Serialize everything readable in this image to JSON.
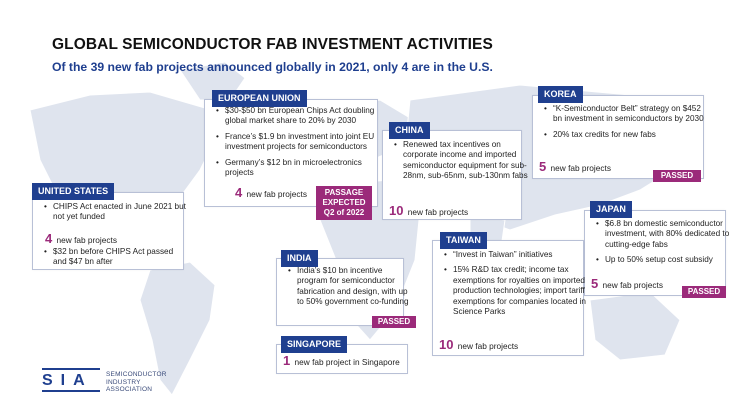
{
  "title": "GLOBAL SEMICONDUCTOR FAB INVESTMENT ACTIVITIES",
  "subtitle": "Of the 39 new fab projects announced globally in 2021, only 4 are in the U.S.",
  "colors": {
    "navy": "#1f3f8f",
    "magenta": "#9b2a7a",
    "map": "#dfe4ee"
  },
  "regions": {
    "us": {
      "name": "UNITED STATES",
      "bullets1": [
        "CHIPS Act enacted in June 2021 but not yet funded"
      ],
      "count": "4",
      "count_text": "new fab projects",
      "bullets2": [
        "$32 bn before CHIPS Act passed and $47 bn after"
      ]
    },
    "eu": {
      "name": "EUROPEAN UNION",
      "bullets": [
        "$30-$50 bn European Chips Act doubling global market share to 20% by 2030",
        "France’s $1.9 bn investment into joint EU investment projects for semiconductors",
        "Germany’s $12 bn in microelectronics projects"
      ],
      "count": "4",
      "count_text": "new fab projects",
      "badge": [
        "PASSAGE",
        "EXPECTED",
        "Q2 of 2022"
      ]
    },
    "china": {
      "name": "CHINA",
      "bullets": [
        "Renewed tax incentives on corporate income and imported semiconductor equipment for sub-28nm, sub-65nm, sub-130nm fabs"
      ],
      "count": "10",
      "count_text": "new fab projects"
    },
    "korea": {
      "name": "KOREA",
      "bullets": [
        "“K-Semiconductor Belt” strategy on $452 bn investment in semiconductors by 2030",
        "20% tax credits for new fabs"
      ],
      "count": "5",
      "count_text": "new fab projects",
      "badge": "PASSED"
    },
    "japan": {
      "name": "JAPAN",
      "bullets": [
        "$6.8 bn domestic semiconductor investment, with 80% dedicated to cutting-edge fabs",
        "Up to 50% setup cost subsidy"
      ],
      "count": "5",
      "count_text": "new fab projects",
      "badge": "PASSED"
    },
    "india": {
      "name": "INDIA",
      "bullets": [
        "India’s $10 bn incentive program for semiconductor fabrication and design, with up to 50% government co-funding"
      ],
      "badge": "PASSED"
    },
    "taiwan": {
      "name": "TAIWAN",
      "bullets": [
        "“Invest in Taiwan” initiatives",
        "15% R&D tax credit; income tax exemptions for royalties on imported production technologies; import tariff exemptions for companies located in Science Parks"
      ],
      "count": "10",
      "count_text": "new fab projects"
    },
    "singapore": {
      "name": "SINGAPORE",
      "count": "1",
      "count_text": "new fab project in Singapore"
    }
  },
  "logo": {
    "letters": "SIA",
    "lines": [
      "SEMICONDUCTOR",
      "INDUSTRY",
      "ASSOCIATION"
    ]
  }
}
